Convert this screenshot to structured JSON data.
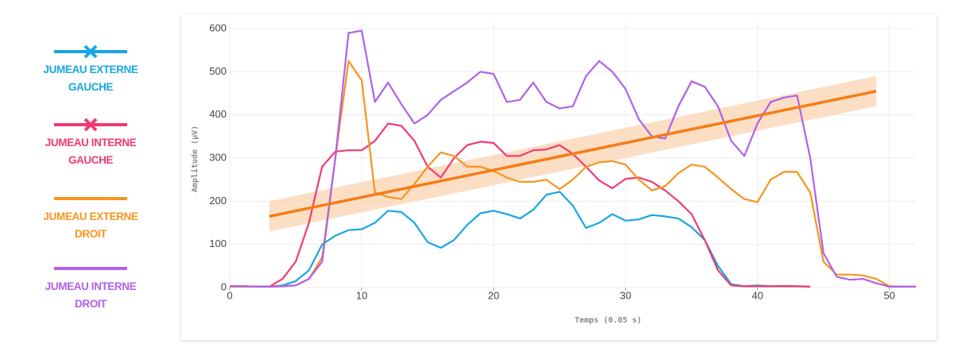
{
  "chart_data": {
    "type": "line",
    "x_label": "Temps (0.05 s)",
    "y_label": "Amplitude (µV)",
    "xlim": [
      0,
      52
    ],
    "xticks": [
      0,
      10,
      20,
      30,
      40,
      50
    ],
    "ylim": [
      0,
      600
    ],
    "yticks": [
      0,
      100,
      200,
      300,
      400,
      500,
      600
    ],
    "grid": true,
    "x": [
      0,
      1,
      2,
      3,
      4,
      5,
      6,
      7,
      8,
      9,
      10,
      11,
      12,
      13,
      14,
      15,
      16,
      17,
      18,
      19,
      20,
      21,
      22,
      23,
      24,
      25,
      26,
      27,
      28,
      29,
      30,
      31,
      32,
      33,
      34,
      35,
      36,
      37,
      38,
      39,
      40,
      41,
      42,
      43,
      44,
      45,
      46,
      47,
      48,
      49,
      50,
      51,
      52
    ],
    "series": [
      {
        "name": "JUMEAU EXTERNE GAUCHE",
        "color": "#17a6e3",
        "marker": "x",
        "values": [
          3,
          3,
          2,
          2,
          5,
          15,
          40,
          100,
          120,
          133,
          135,
          150,
          178,
          175,
          150,
          105,
          92,
          110,
          145,
          172,
          178,
          170,
          160,
          180,
          215,
          222,
          190,
          138,
          150,
          170,
          155,
          158,
          168,
          165,
          160,
          140,
          110,
          50,
          8,
          3,
          5,
          3,
          4,
          3,
          2,
          null,
          null,
          null,
          null,
          null,
          null,
          null,
          null
        ]
      },
      {
        "name": "JUMEAU INTERNE GAUCHE",
        "color": "#f23a72",
        "marker": "x",
        "values": [
          3,
          3,
          2,
          2,
          20,
          60,
          150,
          280,
          315,
          318,
          318,
          340,
          380,
          375,
          340,
          280,
          255,
          300,
          330,
          338,
          335,
          305,
          305,
          318,
          320,
          330,
          310,
          280,
          248,
          230,
          252,
          255,
          245,
          225,
          200,
          170,
          110,
          40,
          5,
          3,
          3,
          3,
          3,
          3,
          2,
          null,
          null,
          null,
          null,
          null,
          null,
          null,
          null
        ]
      },
      {
        "name": "JUMEAU EXTERNE DROIT",
        "color": "#f7941e",
        "values": [
          2,
          2,
          2,
          2,
          3,
          5,
          20,
          70,
          300,
          525,
          480,
          220,
          210,
          205,
          240,
          280,
          313,
          305,
          280,
          280,
          270,
          255,
          245,
          245,
          250,
          228,
          250,
          280,
          290,
          293,
          285,
          250,
          225,
          235,
          265,
          285,
          280,
          255,
          228,
          205,
          198,
          250,
          268,
          268,
          220,
          60,
          30,
          30,
          28,
          20,
          3,
          2,
          2
        ]
      },
      {
        "name": "JUMEAU INTERNE DROIT",
        "color": "#b061e8",
        "values": [
          3,
          3,
          2,
          2,
          3,
          5,
          20,
          60,
          300,
          590,
          595,
          430,
          475,
          425,
          380,
          400,
          435,
          455,
          475,
          500,
          495,
          430,
          435,
          475,
          430,
          415,
          420,
          490,
          525,
          500,
          460,
          390,
          350,
          345,
          420,
          478,
          465,
          420,
          340,
          305,
          380,
          430,
          440,
          445,
          300,
          80,
          25,
          18,
          20,
          10,
          2,
          2,
          2
        ]
      }
    ],
    "trend": {
      "color": "#f57c14",
      "band_color": "#fbd3b0",
      "x": [
        3,
        49
      ],
      "values": [
        165,
        455
      ],
      "lower": [
        130,
        420
      ],
      "upper": [
        200,
        490
      ]
    }
  }
}
